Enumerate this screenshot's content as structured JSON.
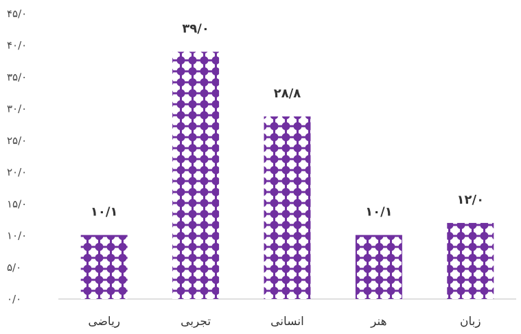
{
  "chart_data": {
    "type": "bar",
    "categories": [
      "ریاضی",
      "تجربی",
      "انسانی",
      "هنر",
      "زبان"
    ],
    "values": [
      10.1,
      39.0,
      28.8,
      10.1,
      12.0
    ],
    "data_labels": [
      "۱۰/۱",
      "۳۹/۰",
      "۲۸/۸",
      "۱۰/۱",
      "۱۲/۰"
    ],
    "y_ticks": [
      "۰/۰",
      "۵/۰",
      "۱۰/۰",
      "۱۵/۰",
      "۲۰/۰",
      "۲۵/۰",
      "۳۰/۰",
      "۳۵/۰",
      "۴۰/۰",
      "۴۵/۰"
    ],
    "ylim": [
      0,
      45
    ],
    "title": "",
    "xlabel": "",
    "ylabel": "",
    "grid": false,
    "legend": "none",
    "bar_color": "#7030a0",
    "bar_pattern": "white dotted grid"
  }
}
